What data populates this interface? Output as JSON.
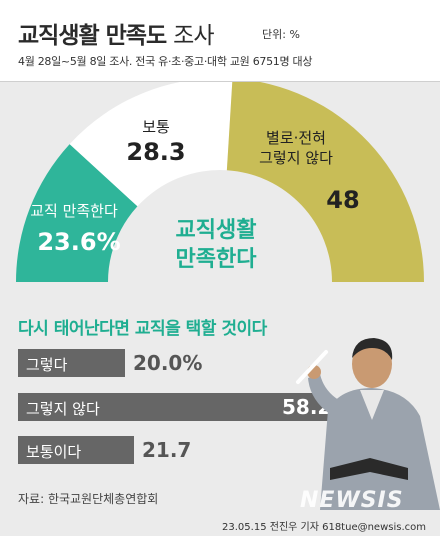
{
  "header": {
    "title_bold": "교직생활 만족도",
    "title_light": "조사",
    "unit": "단위: %",
    "subtitle": "4월 28일~5월 8일 조사. 전국 유·초·중고·대학 교원 6751명 대상"
  },
  "chart_data": [
    {
      "type": "pie",
      "title": "교직생활 만족한다",
      "slices": [
        {
          "label": "교직 만족한다",
          "value": 23.6,
          "display": "23.6%",
          "color": "#2fb59a"
        },
        {
          "label": "보통",
          "value": 28.3,
          "display": "28.3",
          "color": "#ffffff"
        },
        {
          "label": "별로·전혀 그렇지 않다",
          "value": 48,
          "display": "48",
          "color": "#c8bd57"
        }
      ]
    },
    {
      "type": "bar",
      "title": "다시 태어난다면 교직을 택할 것이다",
      "categories": [
        "그렇다",
        "그렇지 않다",
        "보통이다"
      ],
      "values": [
        20.0,
        58.2,
        21.7
      ],
      "display": [
        "20.0%",
        "58.2",
        "21.7"
      ],
      "xlim": [
        0,
        100
      ]
    }
  ],
  "labels": {
    "normal_name": "보통",
    "normal_value": "28.3",
    "neg_name_1": "별로·전혀",
    "neg_name_2": "그렇지 않다",
    "neg_value": "48",
    "pos_name": "교직 만족한다",
    "pos_value": "23.6%",
    "center_1": "교직생활",
    "center_2": "만족한다"
  },
  "footer": {
    "source": "자료: 한국교원단체총연합회",
    "credit": "23.05.15 전진우 기자 618tue@newsis.com",
    "watermark": "NEWSIS"
  },
  "colors": {
    "green": "#2fb59a",
    "olive": "#c8bd57",
    "bar": "#666666",
    "background": "#ebebeb"
  }
}
